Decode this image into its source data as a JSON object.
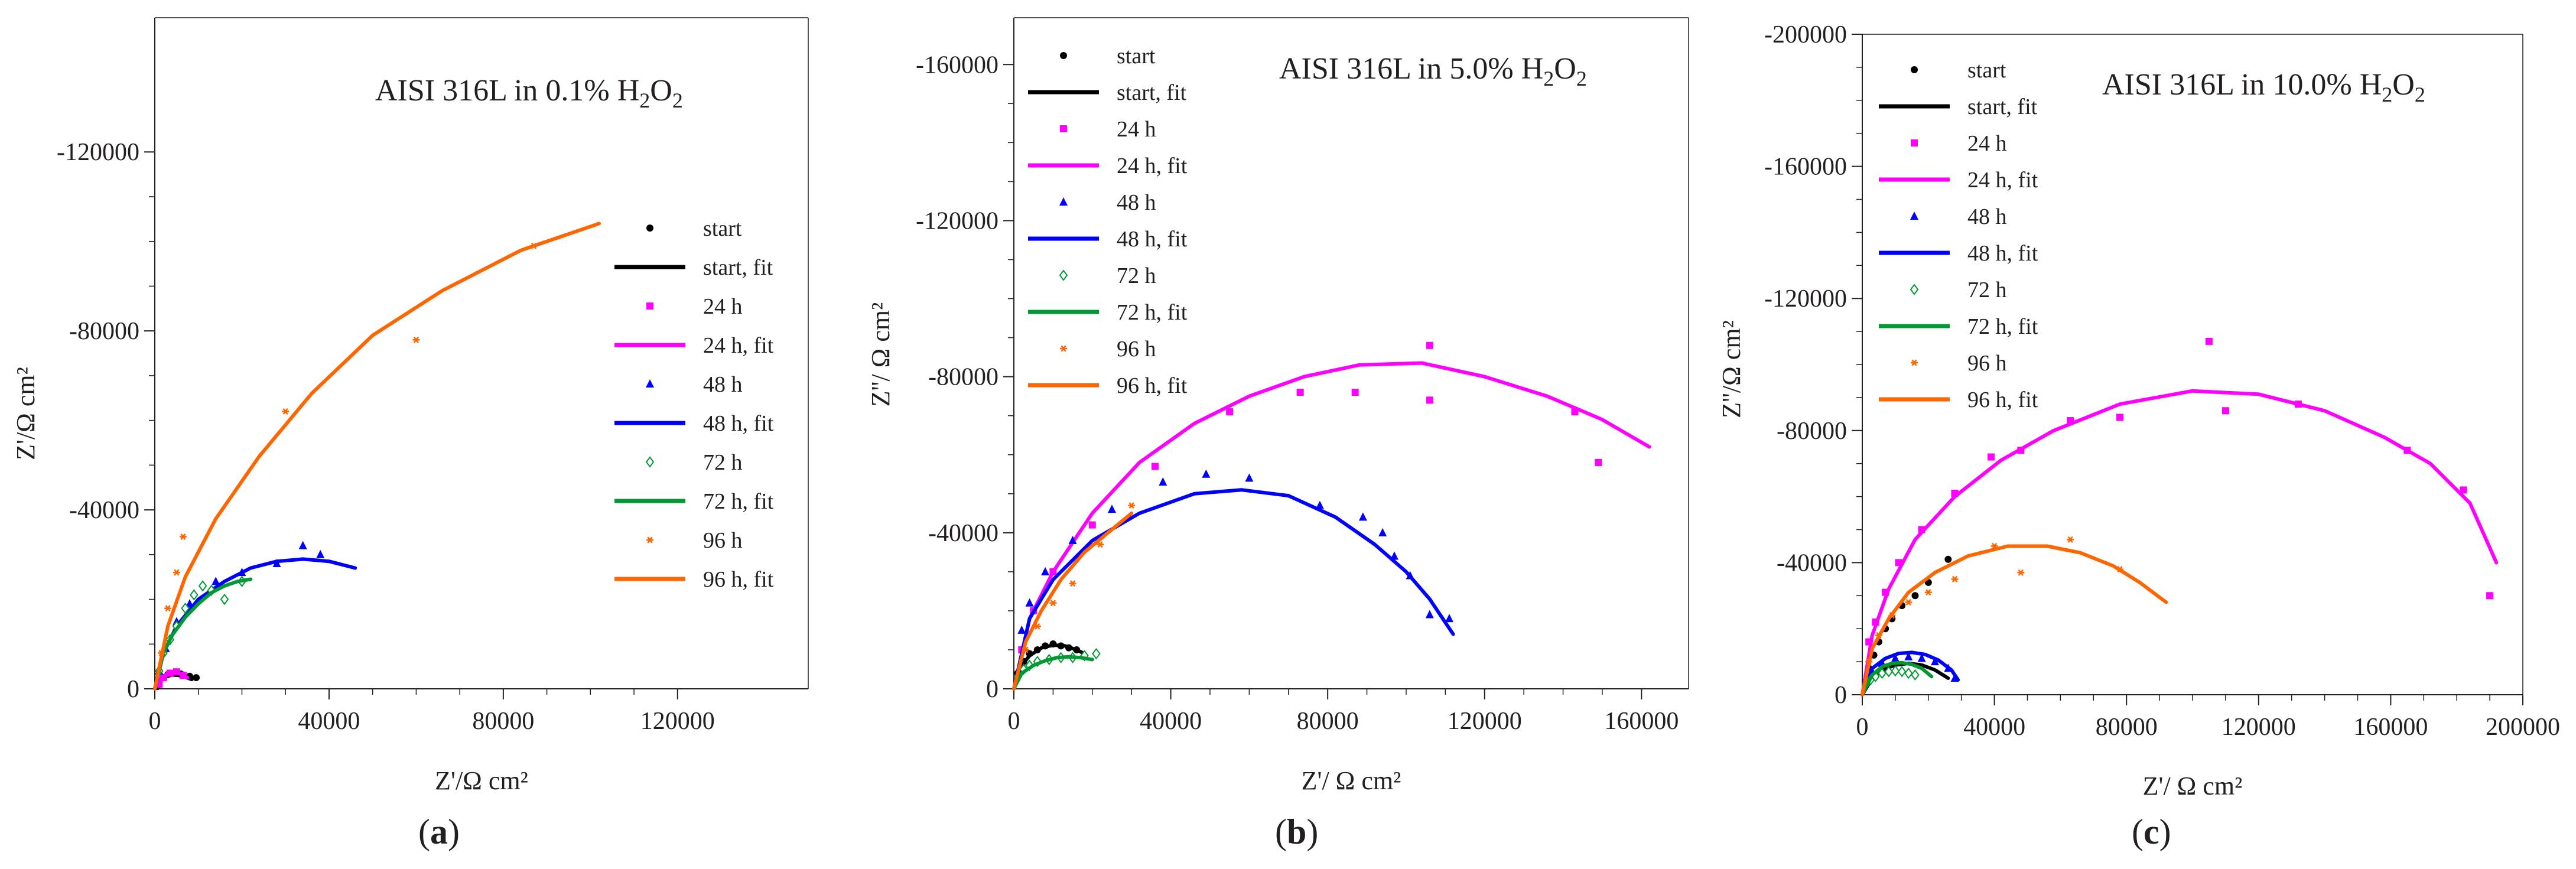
{
  "colors": {
    "start": "#000000",
    "24h": "#ff00ff",
    "48h": "#0000ff",
    "72h": "#009933",
    "96h": "#ff6600",
    "axis": "#231f20"
  },
  "chart_data": [
    {
      "type": "scatter",
      "panel_label": "a",
      "title": "AISI 316L in 0.1% H",
      "title_sub1": "2",
      "title_mid": "O",
      "title_sub2": "2",
      "xlabel": "Z'/Ω cm²",
      "ylabel": "Z'/Ω cm²",
      "xlim": [
        0,
        150000
      ],
      "ylim": [
        0,
        -150000
      ],
      "xticks": [
        0,
        40000,
        80000,
        120000
      ],
      "yticks": [
        0,
        -40000,
        -80000,
        -120000
      ],
      "xtick_labels": [
        "0",
        "40000",
        "80000",
        "120000"
      ],
      "ytick_labels": [
        "0",
        "-40000",
        "-80000",
        "-120000"
      ],
      "legend": [
        "start",
        "start, fit",
        "24 h",
        "24 h, fit",
        "48 h",
        "48 h, fit",
        "72 h",
        "72 h,  fit",
        "96 h",
        "96 h, fit"
      ],
      "series": [
        {
          "name": "start",
          "kind": "points",
          "marker": "circle",
          "color_key": "start",
          "x": [
            500,
            1000,
            2000,
            3000,
            4500,
            6000,
            8000,
            9500
          ],
          "y": [
            -500,
            -1500,
            -2500,
            -3200,
            -3500,
            -3300,
            -2800,
            -2500
          ]
        },
        {
          "name": "start, fit",
          "kind": "line",
          "color_key": "start",
          "x": [
            0,
            1000,
            2500,
            4000,
            5500,
            7000,
            8500
          ],
          "y": [
            0,
            -1800,
            -2800,
            -3100,
            -3000,
            -2600,
            -2100
          ]
        },
        {
          "name": "24 h",
          "kind": "points",
          "marker": "square",
          "color_key": "24h",
          "x": [
            1000,
            2000,
            3500,
            5000,
            6500
          ],
          "y": [
            -1000,
            -2500,
            -3500,
            -3800,
            -3000
          ]
        },
        {
          "name": "24 h, fit",
          "kind": "line",
          "color_key": "24h",
          "x": [
            0,
            1500,
            3000,
            4500,
            6000,
            7500
          ],
          "y": [
            0,
            -2500,
            -3500,
            -3700,
            -3300,
            -2500
          ]
        },
        {
          "name": "48 h",
          "kind": "points",
          "marker": "triangle",
          "color_key": "48h",
          "x": [
            1000,
            2500,
            5000,
            8000,
            14000,
            20000,
            28000,
            34000,
            38000
          ],
          "y": [
            -4000,
            -9000,
            -15000,
            -19000,
            -24000,
            -26000,
            -28000,
            -32000,
            -30000
          ]
        },
        {
          "name": "48 h, fit",
          "kind": "line",
          "color_key": "48h",
          "x": [
            0,
            2000,
            5000,
            10000,
            16000,
            22000,
            28000,
            34000,
            40000,
            46000
          ],
          "y": [
            0,
            -8000,
            -14000,
            -20000,
            -24000,
            -27000,
            -28500,
            -29000,
            -28500,
            -27000
          ]
        },
        {
          "name": "72 h",
          "kind": "points",
          "marker": "diamond",
          "color_key": "72h",
          "x": [
            1000,
            2000,
            3500,
            5000,
            7000,
            9000,
            11000,
            13000,
            16000,
            20000
          ],
          "y": [
            -4000,
            -8000,
            -11000,
            -14000,
            -18000,
            -21000,
            -23000,
            -22000,
            -20000,
            -24000
          ]
        },
        {
          "name": "72 h,  fit",
          "kind": "line",
          "color_key": "72h",
          "x": [
            0,
            2000,
            4000,
            7000,
            10000,
            13000,
            16000,
            19000,
            22000
          ],
          "y": [
            0,
            -8000,
            -12000,
            -16000,
            -19000,
            -21500,
            -23000,
            -24000,
            -24500
          ]
        },
        {
          "name": "96 h",
          "kind": "points",
          "marker": "asterisk",
          "color_key": "96h",
          "x": [
            1500,
            3000,
            5000,
            6500,
            30000,
            60000,
            87000
          ],
          "y": [
            -8000,
            -18000,
            -26000,
            -34000,
            -62000,
            -78000,
            -99000
          ]
        },
        {
          "name": "96 h, fit",
          "kind": "line",
          "color_key": "96h",
          "x": [
            0,
            3000,
            7000,
            14000,
            24000,
            36000,
            50000,
            66000,
            84000,
            102000
          ],
          "y": [
            0,
            -14000,
            -25000,
            -38000,
            -52000,
            -66000,
            -79000,
            -89000,
            -98000,
            -104000
          ]
        }
      ]
    },
    {
      "type": "scatter",
      "panel_label": "b",
      "title": "AISI 316L in 5.0% H",
      "title_sub1": "2",
      "title_mid": "O",
      "title_sub2": "2",
      "xlabel": "Z'/ Ω cm²",
      "ylabel": "Z''/ Ω cm²",
      "xlim": [
        0,
        172000
      ],
      "ylim": [
        0,
        -172000
      ],
      "xticks": [
        0,
        40000,
        80000,
        120000,
        160000
      ],
      "yticks": [
        0,
        -40000,
        -80000,
        -120000,
        -160000
      ],
      "xtick_labels": [
        "0",
        "40000",
        "80000",
        "120000",
        "160000"
      ],
      "ytick_labels": [
        "0",
        "-40000",
        "-80000",
        "-120000",
        "-160000"
      ],
      "legend": [
        "start",
        "start, fit",
        "24 h",
        "24 h, fit",
        "48 h",
        "48 h, fit",
        "72 h",
        "72 h,  fit",
        "96 h",
        "96 h, fit"
      ],
      "series": [
        {
          "name": "start",
          "kind": "points",
          "marker": "circle",
          "color_key": "start",
          "x": [
            1000,
            2500,
            4000,
            6000,
            8000,
            10000,
            12000,
            14000,
            16000
          ],
          "y": [
            -4000,
            -7000,
            -9000,
            -10000,
            -11000,
            -11500,
            -11000,
            -10500,
            -10000
          ]
        },
        {
          "name": "start, fit",
          "kind": "line",
          "color_key": "start",
          "x": [
            0,
            2000,
            4000,
            7000,
            10000,
            13000,
            16000,
            18000
          ],
          "y": [
            0,
            -6000,
            -8500,
            -10500,
            -11200,
            -11000,
            -10000,
            -9000
          ]
        },
        {
          "name": "24 h",
          "kind": "points",
          "marker": "square",
          "color_key": "24h",
          "x": [
            2000,
            5000,
            10000,
            20000,
            36000,
            55000,
            73000,
            87000,
            106000,
            106000,
            143000,
            149000
          ],
          "y": [
            -10000,
            -20000,
            -30000,
            -42000,
            -57000,
            -71000,
            -76000,
            -76000,
            -88000,
            -74000,
            -71000,
            -58000
          ]
        },
        {
          "name": "24 h, fit",
          "kind": "line",
          "color_key": "24h",
          "x": [
            0,
            4000,
            10000,
            20000,
            32000,
            46000,
            60000,
            74000,
            88000,
            104000,
            120000,
            136000,
            150000,
            162000
          ],
          "y": [
            0,
            -18000,
            -30000,
            -45000,
            -58000,
            -68000,
            -75000,
            -80000,
            -83000,
            -83500,
            -80000,
            -75000,
            -69000,
            -62000
          ]
        },
        {
          "name": "48 h",
          "kind": "points",
          "marker": "triangle",
          "color_key": "48h",
          "x": [
            2000,
            4000,
            8000,
            15000,
            25000,
            38000,
            49000,
            60000,
            78000,
            89000,
            94000,
            97000,
            101000,
            106000,
            111000
          ],
          "y": [
            -15000,
            -22000,
            -30000,
            -38000,
            -46000,
            -53000,
            -55000,
            -54000,
            -47000,
            -44000,
            -40000,
            -34000,
            -29000,
            -19000,
            -18000
          ]
        },
        {
          "name": "48 h, fit",
          "kind": "line",
          "color_key": "48h",
          "x": [
            0,
            4000,
            10000,
            20000,
            32000,
            46000,
            58000,
            70000,
            82000,
            92000,
            100000,
            106000,
            110000,
            112000
          ],
          "y": [
            0,
            -18000,
            -28000,
            -38000,
            -45000,
            -50000,
            -51000,
            -49500,
            -44000,
            -37000,
            -30000,
            -23000,
            -17000,
            -14000
          ]
        },
        {
          "name": "72 h",
          "kind": "points",
          "marker": "diamond",
          "color_key": "72h",
          "x": [
            1000,
            2500,
            4000,
            6000,
            9000,
            12000,
            15000,
            18000,
            21000
          ],
          "y": [
            -3000,
            -5000,
            -6000,
            -7000,
            -7500,
            -8000,
            -8000,
            -8500,
            -9000
          ]
        },
        {
          "name": "72 h,  fit",
          "kind": "line",
          "color_key": "72h",
          "x": [
            0,
            2000,
            5000,
            8000,
            11000,
            14000,
            17000,
            20000
          ],
          "y": [
            0,
            -4000,
            -6000,
            -7200,
            -8000,
            -8200,
            -8000,
            -7500
          ]
        },
        {
          "name": "96 h",
          "kind": "points",
          "marker": "asterisk",
          "color_key": "96h",
          "x": [
            3000,
            6000,
            10000,
            15000,
            22000,
            30000
          ],
          "y": [
            -10000,
            -16000,
            -22000,
            -27000,
            -37000,
            -47000
          ]
        },
        {
          "name": "96 h, fit",
          "kind": "line",
          "color_key": "96h",
          "x": [
            0,
            3000,
            7000,
            12000,
            18000,
            24000,
            30000
          ],
          "y": [
            0,
            -12000,
            -20000,
            -28000,
            -35000,
            -40000,
            -45000
          ]
        }
      ]
    },
    {
      "type": "scatter",
      "panel_label": "c",
      "title": "AISI 316L in 10.0% H",
      "title_sub1": "2",
      "title_mid": "O",
      "title_sub2": "2",
      "xlabel": "Z'/ Ω cm²",
      "ylabel": "Z''/Ω cm²",
      "xlim": [
        0,
        200000
      ],
      "ylim": [
        0,
        -200000
      ],
      "xticks": [
        0,
        40000,
        80000,
        120000,
        160000,
        200000
      ],
      "yticks": [
        0,
        -40000,
        -80000,
        -120000,
        -160000,
        -200000
      ],
      "xtick_labels": [
        "0",
        "40000",
        "80000",
        "120000",
        "160000",
        "200000"
      ],
      "ytick_labels": [
        "0",
        "-40000",
        "-80000",
        "-120000",
        "-160000",
        "-200000"
      ],
      "legend": [
        "start",
        "start, fit",
        "24 h",
        "24 h, fit",
        "48 h",
        "48 h, fit",
        "72 h",
        "72 h,  fit",
        "96 h",
        "96 h, fit"
      ],
      "series": [
        {
          "name": "start",
          "kind": "points",
          "marker": "circle",
          "color_key": "start",
          "x": [
            1000,
            2000,
            3500,
            5000,
            7000,
            9000,
            12000,
            16000,
            20000,
            26000
          ],
          "y": [
            -4000,
            -8000,
            -12000,
            -16000,
            -20000,
            -23000,
            -27000,
            -30000,
            -34000,
            -41000
          ]
        },
        {
          "name": "start, fit",
          "kind": "line",
          "color_key": "start",
          "x": [
            0,
            3000,
            6000,
            10000,
            14000,
            18000,
            22000,
            26000
          ],
          "y": [
            0,
            -5000,
            -7500,
            -9000,
            -9500,
            -9000,
            -7500,
            -5000
          ]
        },
        {
          "name": "24 h",
          "kind": "points",
          "marker": "square",
          "color_key": "24h",
          "x": [
            2000,
            4000,
            7000,
            11000,
            18000,
            28000,
            39000,
            48000,
            63000,
            78000,
            105000,
            110000,
            132000,
            165000,
            182000,
            190000
          ],
          "y": [
            -16000,
            -22000,
            -31000,
            -40000,
            -50000,
            -61000,
            -72000,
            -74000,
            -83000,
            -84000,
            -107000,
            -86000,
            -88000,
            -74000,
            -62000,
            -30000
          ]
        },
        {
          "name": "24 h, fit",
          "kind": "line",
          "color_key": "24h",
          "x": [
            0,
            3000,
            8000,
            16000,
            28000,
            42000,
            58000,
            78000,
            100000,
            120000,
            140000,
            158000,
            172000,
            184000,
            192000
          ],
          "y": [
            0,
            -18000,
            -32000,
            -47000,
            -60000,
            -71000,
            -80000,
            -88000,
            -92000,
            -91000,
            -86000,
            -78000,
            -70000,
            -58000,
            -40000
          ]
        },
        {
          "name": "48 h",
          "kind": "points",
          "marker": "triangle",
          "color_key": "48h",
          "x": [
            1000,
            3000,
            6000,
            10000,
            14000,
            18000,
            22000,
            26000,
            28000
          ],
          "y": [
            -4000,
            -7000,
            -9500,
            -11000,
            -11500,
            -11000,
            -10000,
            -8000,
            -5000
          ]
        },
        {
          "name": "48 h, fit",
          "kind": "line",
          "color_key": "48h",
          "x": [
            0,
            3000,
            7000,
            11000,
            15000,
            19000,
            23000,
            27000,
            29000
          ],
          "y": [
            0,
            -8000,
            -11000,
            -12500,
            -12800,
            -12200,
            -10500,
            -7500,
            -4500
          ]
        },
        {
          "name": "72 h",
          "kind": "points",
          "marker": "diamond",
          "color_key": "72h",
          "x": [
            1000,
            2500,
            4000,
            6000,
            8000,
            10000,
            12000,
            14000,
            16000
          ],
          "y": [
            -3000,
            -4500,
            -5500,
            -6500,
            -7000,
            -7200,
            -7000,
            -6500,
            -6000
          ]
        },
        {
          "name": "72 h,  fit",
          "kind": "line",
          "color_key": "72h",
          "x": [
            0,
            3000,
            6000,
            9000,
            12000,
            15000,
            18000,
            21000
          ],
          "y": [
            0,
            -6000,
            -8500,
            -9500,
            -9700,
            -9200,
            -8000,
            -5500
          ]
        },
        {
          "name": "96 h",
          "kind": "points",
          "marker": "asterisk",
          "color_key": "96h",
          "x": [
            2000,
            5000,
            9000,
            14000,
            20000,
            28000,
            40000,
            48000,
            63000,
            78000
          ],
          "y": [
            -10000,
            -18000,
            -24000,
            -28000,
            -31000,
            -35000,
            -45000,
            -37000,
            -47000,
            -38000
          ]
        },
        {
          "name": "96 h, fit",
          "kind": "line",
          "color_key": "96h",
          "x": [
            0,
            3000,
            8000,
            14000,
            22000,
            32000,
            44000,
            56000,
            66000,
            76000,
            84000,
            92000
          ],
          "y": [
            0,
            -14000,
            -23000,
            -31000,
            -37000,
            -42000,
            -45000,
            -45000,
            -43000,
            -39000,
            -34000,
            -28000
          ]
        }
      ]
    }
  ]
}
